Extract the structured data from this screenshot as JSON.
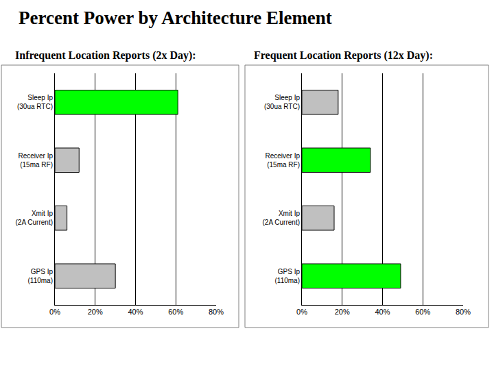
{
  "title": "Percent Power by Architecture Element",
  "chart_data": [
    {
      "type": "bar",
      "title": "Infrequent Location Reports (2x Day):",
      "orientation": "horizontal",
      "categories": [
        "Sleep Ip\n(30ua RTC)",
        "Receiver Ip\n(15ma RF)",
        "Xmit Ip\n(2A Current)",
        "GPS Ip\n(110ma)"
      ],
      "values": [
        61,
        12,
        6,
        30
      ],
      "colors": [
        "#00ff00",
        "#c0c0c0",
        "#c0c0c0",
        "#c0c0c0"
      ],
      "xlim": [
        0,
        80
      ],
      "xticks": [
        {
          "value": 0,
          "label": "0%"
        },
        {
          "value": 20,
          "label": "20%"
        },
        {
          "value": 40,
          "label": "40%"
        },
        {
          "value": 60,
          "label": "60%"
        },
        {
          "value": 80,
          "label": "80%"
        }
      ],
      "grid": true
    },
    {
      "type": "bar",
      "title": "Frequent Location Reports (12x Day):",
      "orientation": "horizontal",
      "categories": [
        "Sleep Ip\n(30ua RTC)",
        "Receiver Ip\n(15ma RF)",
        "Xmit Ip\n(2A Current)",
        "GPS Ip\n(110ma)"
      ],
      "values": [
        18,
        34,
        16,
        49
      ],
      "colors": [
        "#c0c0c0",
        "#00ff00",
        "#c0c0c0",
        "#00ff00"
      ],
      "xlim": [
        0,
        80
      ],
      "xticks": [
        {
          "value": 0,
          "label": "0%"
        },
        {
          "value": 20,
          "label": "20%"
        },
        {
          "value": 40,
          "label": "40%"
        },
        {
          "value": 60,
          "label": "60%"
        },
        {
          "value": 80,
          "label": "80%"
        }
      ],
      "grid": true
    }
  ]
}
